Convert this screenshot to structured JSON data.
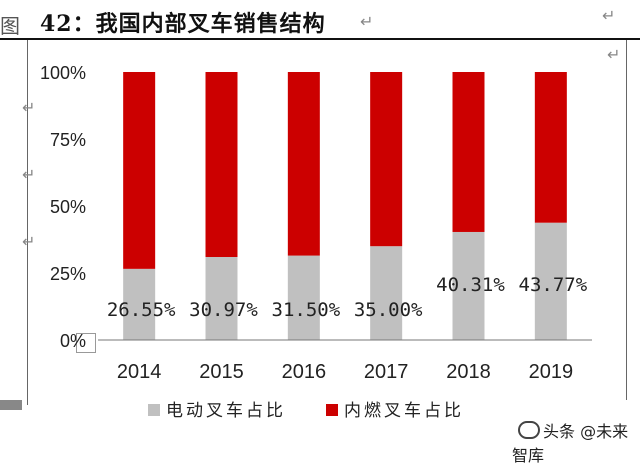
{
  "header": {
    "glyph": "图",
    "title": "42：我国内部叉车销售结构",
    "return_mark": "↵"
  },
  "chart_data": {
    "type": "bar",
    "stacked": true,
    "categories": [
      "2014",
      "2015",
      "2016",
      "2017",
      "2018",
      "2019"
    ],
    "series": [
      {
        "name": "电动叉车占比",
        "color": "#c0c0c0",
        "values": [
          26.55,
          30.97,
          31.5,
          35.0,
          40.31,
          43.77
        ]
      },
      {
        "name": "内燃叉车占比",
        "color": "#cc0000",
        "values": [
          73.45,
          69.03,
          68.5,
          65.0,
          59.69,
          56.23
        ]
      }
    ],
    "data_labels": [
      "26.55%",
      "30.97%",
      "31.50%",
      "35.00%",
      "40.31%",
      "43.77%"
    ],
    "y_ticks": [
      "0%",
      "25%",
      "50%",
      "75%",
      "100%"
    ],
    "ylim": [
      0,
      100
    ],
    "legend_position": "bottom",
    "grid": false
  },
  "watermark": {
    "text": "头条 @未来智库"
  }
}
